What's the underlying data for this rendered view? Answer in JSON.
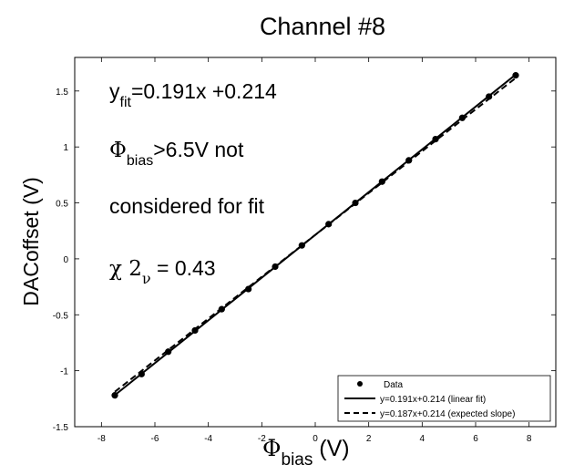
{
  "chart_data": {
    "type": "scatter",
    "title": "Channel #8",
    "xlabel": {
      "main": "Φ",
      "sub": "bias",
      "suffix": " (V)"
    },
    "ylabel": "DACoffset (V)",
    "xlim": [
      -9,
      9
    ],
    "ylim": [
      -1.5,
      1.8
    ],
    "xticks": [
      -8,
      -6,
      -4,
      -2,
      0,
      2,
      4,
      6,
      8
    ],
    "yticks": [
      -1.5,
      -1,
      -0.5,
      0,
      0.5,
      1,
      1.5
    ],
    "ytick_labels": [
      "-1.5",
      "-1",
      "-0.5",
      "0",
      "0.5",
      "1",
      "1.5"
    ],
    "grid": false,
    "legend_position": "bottom-right",
    "series": [
      {
        "name": "Data",
        "style": "points",
        "x": [
          -7.5,
          -6.5,
          -5.5,
          -4.5,
          -3.5,
          -2.5,
          -1.5,
          -0.5,
          0.5,
          1.5,
          2.5,
          3.5,
          4.5,
          5.5,
          6.5,
          7.5
        ],
        "y": [
          -1.22,
          -1.03,
          -0.83,
          -0.64,
          -0.45,
          -0.27,
          -0.07,
          0.12,
          0.31,
          0.5,
          0.69,
          0.88,
          1.07,
          1.26,
          1.45,
          1.64
        ]
      },
      {
        "name": "y=0.191x+0.214 (linear fit)",
        "style": "solid",
        "slope": 0.191,
        "intercept": 0.214,
        "x_range": [
          -7.5,
          7.5
        ]
      },
      {
        "name": "y=0.187x+0.214 (expected slope)",
        "style": "dashed",
        "slope": 0.187,
        "intercept": 0.214,
        "x_range": [
          -7.5,
          7.5
        ]
      }
    ],
    "annotations": {
      "fit": {
        "main": "y",
        "sub": "fit",
        "rest": "=0.191x +0.214"
      },
      "bias_line1": {
        "main": "Φ",
        "sub": "bias",
        "rest": ">6.5V not"
      },
      "bias_line2": "considered for fit",
      "chi": {
        "main": "χ 2",
        "sub": "ν",
        "rest": " = 0.43"
      }
    }
  }
}
